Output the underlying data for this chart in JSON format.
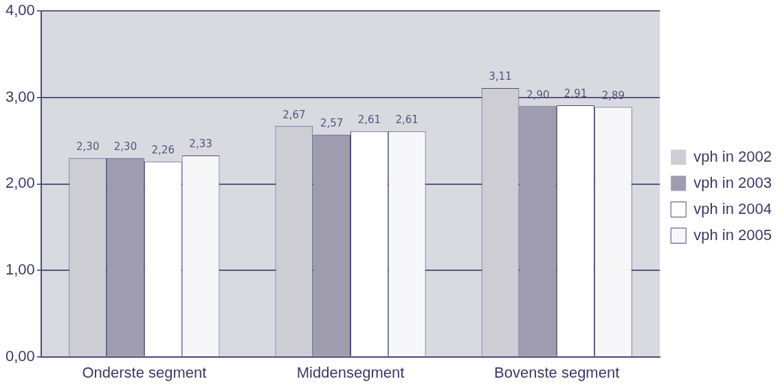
{
  "chart_data": {
    "type": "bar",
    "categories": [
      "Onderste segment",
      "Middensegment",
      "Bovenste segment"
    ],
    "series": [
      {
        "name": "vph in 2002",
        "color": "#cdcdd3",
        "values": [
          2.3,
          2.67,
          3.11
        ],
        "value_labels": [
          "2,30",
          "2,67",
          "3,11"
        ]
      },
      {
        "name": "vph in 2003",
        "color": "#9e9cae",
        "values": [
          2.3,
          2.57,
          2.9
        ],
        "value_labels": [
          "2,30",
          "2,57",
          "2,90"
        ]
      },
      {
        "name": "vph in 2004",
        "color": "#ffffff",
        "values": [
          2.26,
          2.61,
          2.91
        ],
        "value_labels": [
          "2,26",
          "2,61",
          "2,91"
        ]
      },
      {
        "name": "vph in 2005",
        "color": "#f7f7f9",
        "values": [
          2.33,
          2.61,
          2.89
        ],
        "value_labels": [
          "2,33",
          "2,61",
          "2,89"
        ]
      }
    ],
    "ylim": [
      0,
      4
    ],
    "yticks": [
      {
        "value": 0,
        "label": "0,00"
      },
      {
        "value": 1,
        "label": "1,00"
      },
      {
        "value": 2,
        "label": "2,00"
      },
      {
        "value": 3,
        "label": "3,00"
      },
      {
        "value": 4,
        "label": "4,00"
      }
    ],
    "grid": "y",
    "legend": "right"
  }
}
